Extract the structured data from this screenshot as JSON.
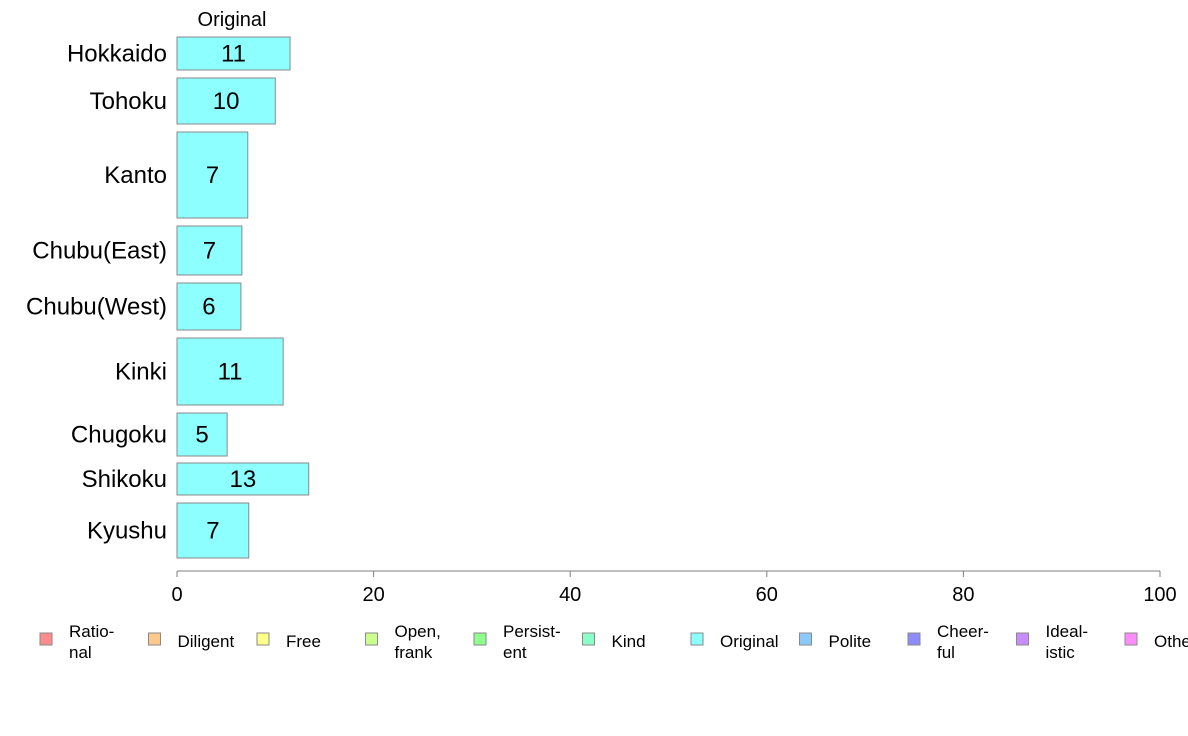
{
  "chart_data": {
    "type": "bar",
    "orientation": "horizontal",
    "series_title": "Original",
    "categories": [
      "Hokkaido",
      "Tohoku",
      "Kanto",
      "Chubu(East)",
      "Chubu(West)",
      "Kinki",
      "Chugoku",
      "Shikoku",
      "Kyushu"
    ],
    "series": [
      {
        "name": "Original",
        "color": "#8dffff",
        "values": [
          11.5,
          10,
          7.2,
          6.6,
          6.5,
          10.8,
          5.1,
          13.4,
          7.3
        ],
        "value_labels": [
          "11",
          "10",
          "7",
          "7",
          "6",
          "11",
          "5",
          "13",
          "7"
        ]
      }
    ],
    "xlim": [
      0,
      100
    ],
    "x_ticks": [
      0,
      20,
      40,
      60,
      80,
      100
    ],
    "x_tick_labels": [
      "0",
      "20",
      "40",
      "60",
      "80",
      "100"
    ],
    "grid": false,
    "legend_placement": "bottom",
    "legend": [
      {
        "lines": [
          "Ratio-",
          "nal"
        ],
        "color": "#ff8c8c"
      },
      {
        "lines": [
          "Diligent"
        ],
        "color": "#ffc98c"
      },
      {
        "lines": [
          "Free"
        ],
        "color": "#ffff8c"
      },
      {
        "lines": [
          "Open,",
          "frank"
        ],
        "color": "#c9ff8c"
      },
      {
        "lines": [
          "Persist-",
          "ent"
        ],
        "color": "#8cff8c"
      },
      {
        "lines": [
          "Kind"
        ],
        "color": "#8cffc9"
      },
      {
        "lines": [
          "Original"
        ],
        "color": "#8cffff"
      },
      {
        "lines": [
          "Polite"
        ],
        "color": "#8cc9ff"
      },
      {
        "lines": [
          "Cheer-",
          "ful"
        ],
        "color": "#8c8cff"
      },
      {
        "lines": [
          "Ideal-",
          "istic"
        ],
        "color": "#c98cff"
      },
      {
        "lines": [
          "Others"
        ],
        "color": "#ff8cff"
      }
    ]
  }
}
